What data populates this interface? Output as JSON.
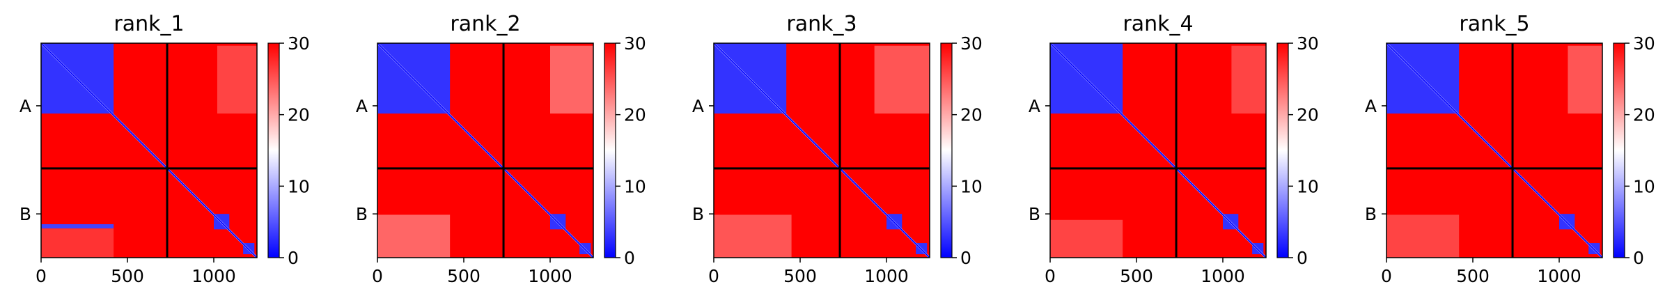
{
  "figure": {
    "colors": {
      "low": "#0000ff",
      "mid": "#ffffff",
      "high": "#ff0000",
      "line": "#000000"
    },
    "chart_data": [
      {
        "type": "heatmap",
        "title": "rank_1",
        "xlim": [
          0,
          1250
        ],
        "ylim": [
          1250,
          0
        ],
        "xticks": [
          0,
          500,
          1000
        ],
        "y_tick_labels": [
          {
            "label": "A",
            "value": 365
          },
          {
            "label": "B",
            "value": 995
          }
        ],
        "chain_boundary": 730,
        "colorbar": {
          "min": 0,
          "max": 30,
          "ticks": [
            0,
            10,
            20,
            30
          ]
        },
        "blocks": [
          {
            "x": [
              0,
              420
            ],
            "y": [
              0,
              410
            ],
            "value": 3
          },
          {
            "x": [
              0,
              420
            ],
            "y": [
              1055,
              1080
            ],
            "value": 4
          },
          {
            "x": [
              1000,
              1090
            ],
            "y": [
              995,
              1085
            ],
            "value": 3
          },
          {
            "x": [
              1170,
              1235
            ],
            "y": [
              1165,
              1230
            ],
            "value": 3
          },
          {
            "x": [
              1020,
              1250
            ],
            "y": [
              15,
              410
            ],
            "value": 26
          },
          {
            "x": [
              0,
              420
            ],
            "y": [
              1080,
              1250
            ],
            "value": 27
          }
        ]
      },
      {
        "type": "heatmap",
        "title": "rank_2",
        "xlim": [
          0,
          1250
        ],
        "ylim": [
          1250,
          0
        ],
        "xticks": [
          0,
          500,
          1000
        ],
        "y_tick_labels": [
          {
            "label": "A",
            "value": 365
          },
          {
            "label": "B",
            "value": 995
          }
        ],
        "chain_boundary": 730,
        "colorbar": {
          "min": 0,
          "max": 30,
          "ticks": [
            0,
            10,
            20,
            30
          ]
        },
        "blocks": [
          {
            "x": [
              0,
              420
            ],
            "y": [
              0,
              410
            ],
            "value": 3
          },
          {
            "x": [
              1000,
              1090
            ],
            "y": [
              995,
              1085
            ],
            "value": 3
          },
          {
            "x": [
              1170,
              1235
            ],
            "y": [
              1165,
              1230
            ],
            "value": 3
          },
          {
            "x": [
              1000,
              1250
            ],
            "y": [
              15,
              410
            ],
            "value": 24
          },
          {
            "x": [
              0,
              420
            ],
            "y": [
              1000,
              1250
            ],
            "value": 24
          }
        ]
      },
      {
        "type": "heatmap",
        "title": "rank_3",
        "xlim": [
          0,
          1250
        ],
        "ylim": [
          1250,
          0
        ],
        "xticks": [
          0,
          500,
          1000
        ],
        "y_tick_labels": [
          {
            "label": "A",
            "value": 365
          },
          {
            "label": "B",
            "value": 995
          }
        ],
        "chain_boundary": 730,
        "colorbar": {
          "min": 0,
          "max": 30,
          "ticks": [
            0,
            10,
            20,
            30
          ]
        },
        "blocks": [
          {
            "x": [
              0,
              420
            ],
            "y": [
              0,
              410
            ],
            "value": 3
          },
          {
            "x": [
              1000,
              1090
            ],
            "y": [
              995,
              1085
            ],
            "value": 3
          },
          {
            "x": [
              1170,
              1235
            ],
            "y": [
              1165,
              1230
            ],
            "value": 3
          },
          {
            "x": [
              930,
              1250
            ],
            "y": [
              15,
              410
            ],
            "value": 25
          },
          {
            "x": [
              0,
              450
            ],
            "y": [
              1000,
              1250
            ],
            "value": 25
          }
        ]
      },
      {
        "type": "heatmap",
        "title": "rank_4",
        "xlim": [
          0,
          1250
        ],
        "ylim": [
          1250,
          0
        ],
        "xticks": [
          0,
          500,
          1000
        ],
        "y_tick_labels": [
          {
            "label": "A",
            "value": 365
          },
          {
            "label": "B",
            "value": 995
          }
        ],
        "chain_boundary": 730,
        "colorbar": {
          "min": 0,
          "max": 30,
          "ticks": [
            0,
            10,
            20,
            30
          ]
        },
        "blocks": [
          {
            "x": [
              0,
              420
            ],
            "y": [
              0,
              410
            ],
            "value": 3
          },
          {
            "x": [
              1000,
              1090
            ],
            "y": [
              995,
              1085
            ],
            "value": 3
          },
          {
            "x": [
              1170,
              1235
            ],
            "y": [
              1165,
              1230
            ],
            "value": 3
          },
          {
            "x": [
              1050,
              1250
            ],
            "y": [
              15,
              410
            ],
            "value": 26
          },
          {
            "x": [
              0,
              420
            ],
            "y": [
              1030,
              1250
            ],
            "value": 26
          }
        ]
      },
      {
        "type": "heatmap",
        "title": "rank_5",
        "xlim": [
          0,
          1250
        ],
        "ylim": [
          1250,
          0
        ],
        "xticks": [
          0,
          500,
          1000
        ],
        "y_tick_labels": [
          {
            "label": "A",
            "value": 365
          },
          {
            "label": "B",
            "value": 995
          }
        ],
        "chain_boundary": 730,
        "colorbar": {
          "min": 0,
          "max": 30,
          "ticks": [
            0,
            10,
            20,
            30
          ]
        },
        "blocks": [
          {
            "x": [
              0,
              420
            ],
            "y": [
              0,
              410
            ],
            "value": 3
          },
          {
            "x": [
              1000,
              1090
            ],
            "y": [
              995,
              1085
            ],
            "value": 3
          },
          {
            "x": [
              1170,
              1235
            ],
            "y": [
              1165,
              1230
            ],
            "value": 3
          },
          {
            "x": [
              1050,
              1250
            ],
            "y": [
              15,
              410
            ],
            "value": 25
          },
          {
            "x": [
              0,
              420
            ],
            "y": [
              1000,
              1250
            ],
            "value": 26
          }
        ]
      }
    ]
  }
}
